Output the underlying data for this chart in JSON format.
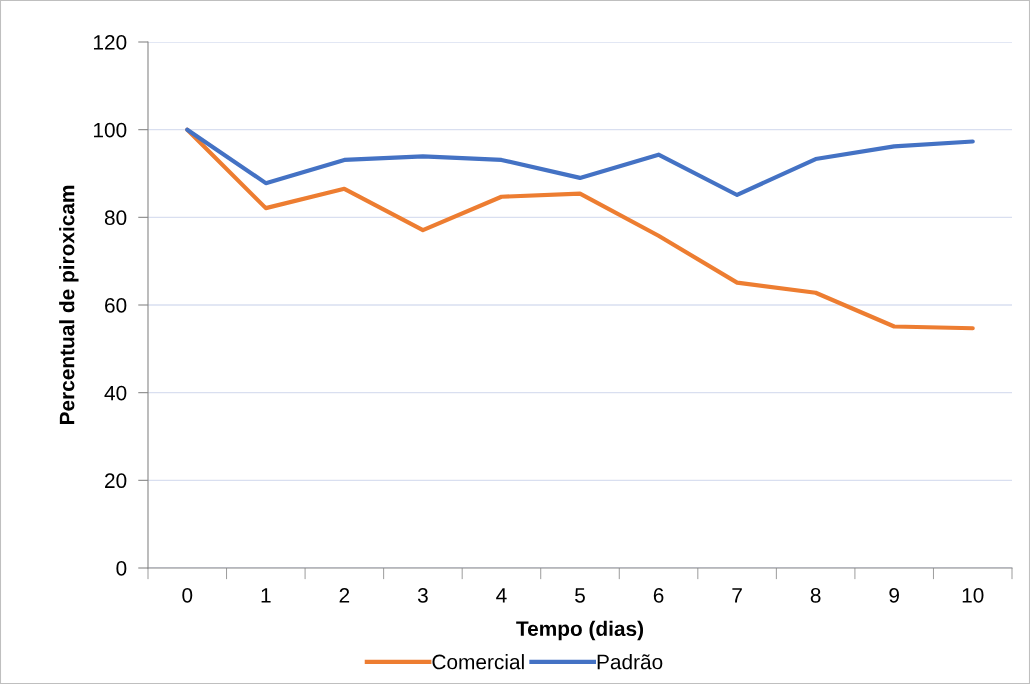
{
  "chart_data": {
    "type": "line",
    "xlabel": "Tempo (dias)",
    "ylabel": "Percentual de piroxicam",
    "categories": [
      "0",
      "1",
      "2",
      "3",
      "4",
      "5",
      "6",
      "7",
      "8",
      "9",
      "10"
    ],
    "series": [
      {
        "name": "Comercial",
        "color": "#ed7d31",
        "values": [
          100,
          82.1,
          86.5,
          77.1,
          84.7,
          85.4,
          75.8,
          65.1,
          62.8,
          55.1,
          54.7
        ]
      },
      {
        "name": "Padrão",
        "color": "#4472c4",
        "values": [
          100,
          87.8,
          93.1,
          93.9,
          93.1,
          89.0,
          94.3,
          85.1,
          93.3,
          96.2,
          97.3
        ]
      }
    ],
    "ylim": [
      0,
      120
    ],
    "yticks": [
      0,
      20,
      40,
      60,
      80,
      100,
      120
    ],
    "grid": "y",
    "legend": "bottom",
    "marker": "none",
    "line_style": "solid"
  }
}
